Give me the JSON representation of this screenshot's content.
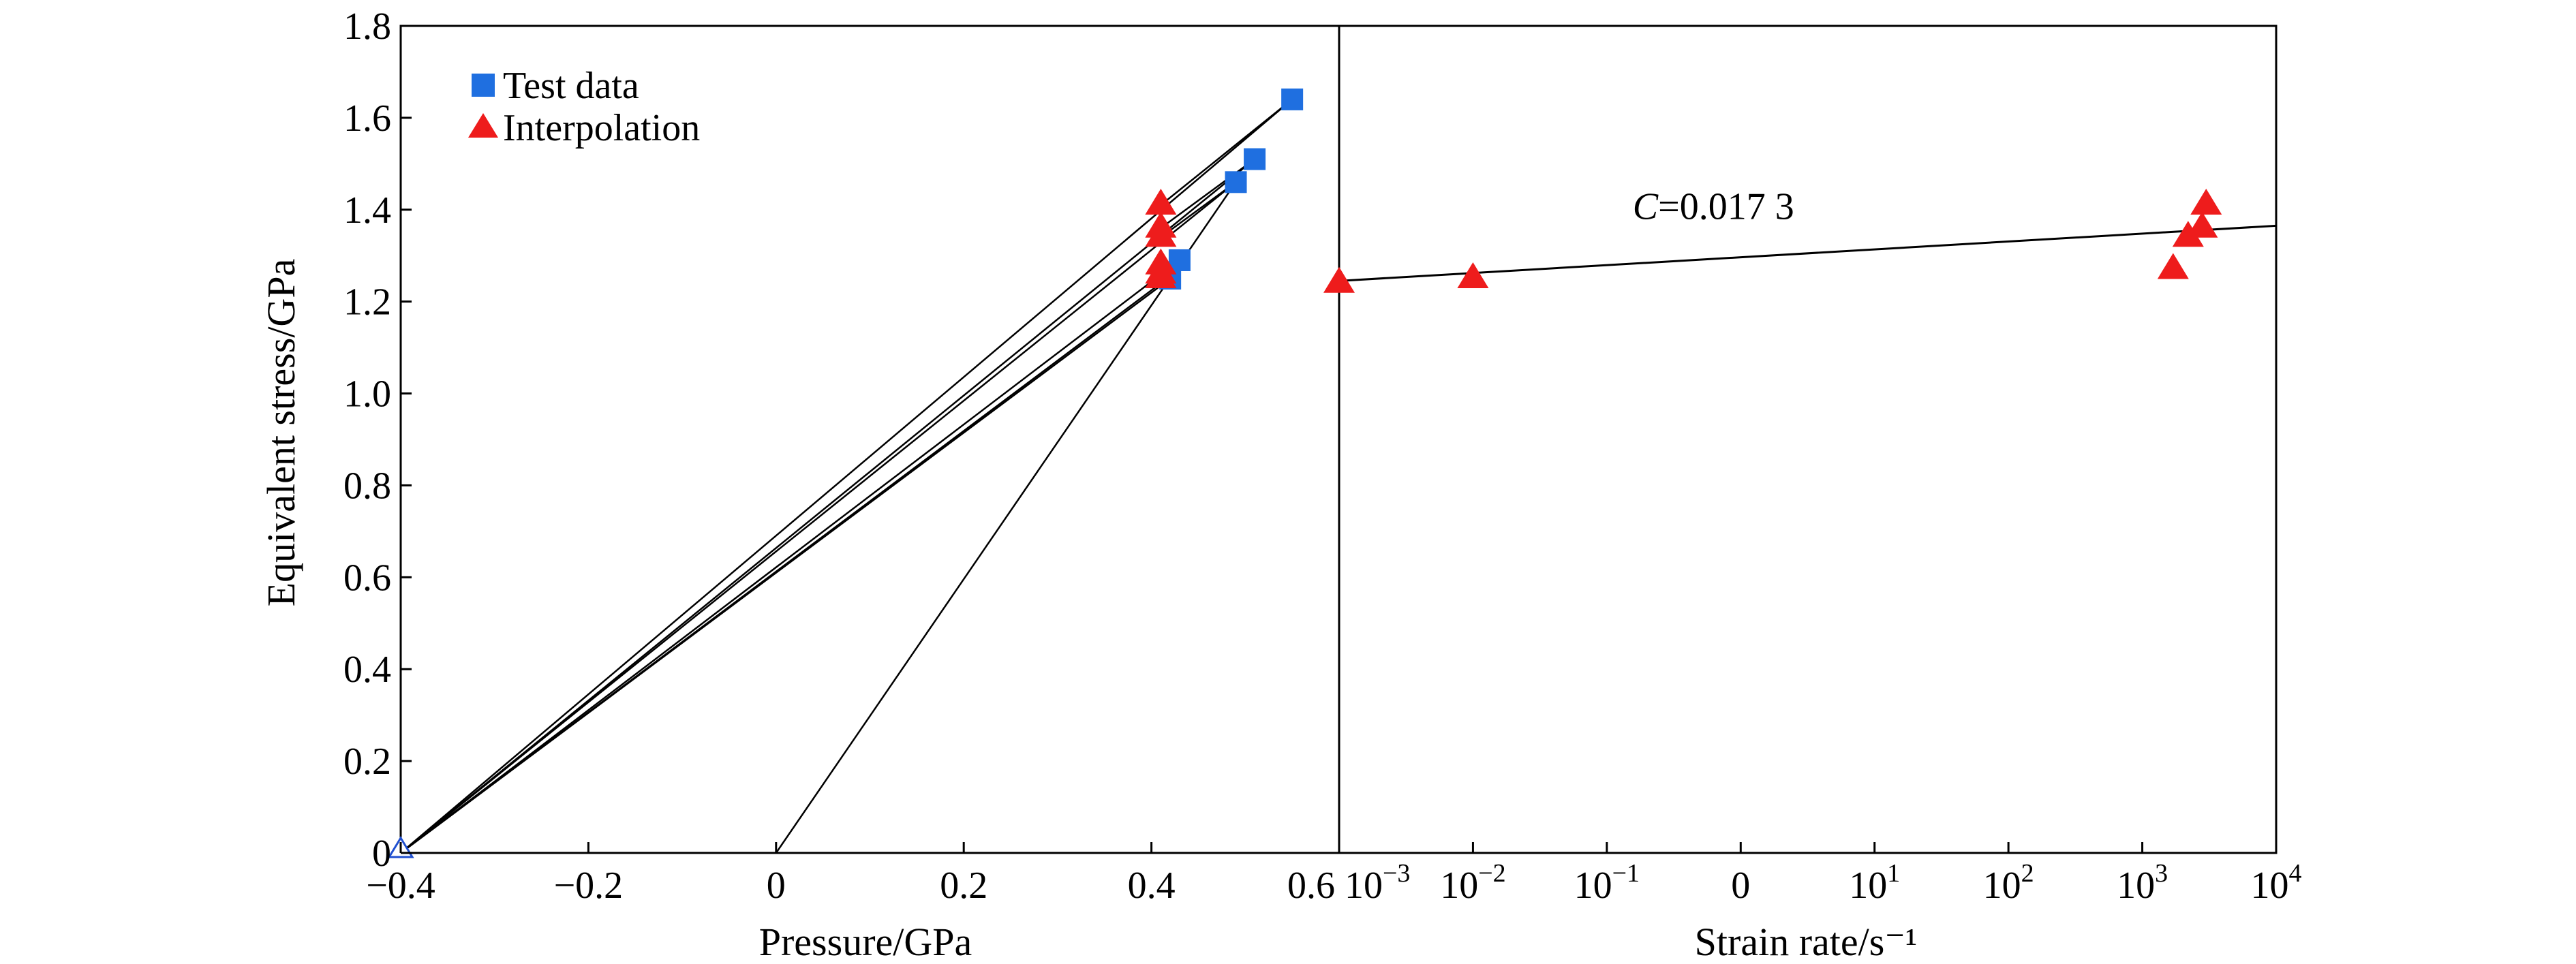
{
  "chart_data": {
    "type": "scatter",
    "ylabel": "Equivalent stress/GPa",
    "ylim": [
      0,
      1.8
    ],
    "yticks": [
      "0",
      "0.2",
      "0.4",
      "0.6",
      "0.8",
      "1.0",
      "1.2",
      "1.4",
      "1.6",
      "1.8"
    ],
    "legend": {
      "position": "top-left",
      "entries": [
        {
          "label": "Test data",
          "marker": "square",
          "color": "#1f6fe0"
        },
        {
          "label": "Interpolation",
          "marker": "triangle",
          "color": "#ee1c1c"
        }
      ]
    },
    "panels": [
      {
        "name": "pressure",
        "xlabel": "Pressure/GPa",
        "xlim": [
          -0.4,
          0.6
        ],
        "xticks": [
          "−0.4",
          "−0.2",
          "0",
          "0.2",
          "0.4",
          "0.6"
        ],
        "series": [
          {
            "name": "Test data",
            "marker": "square",
            "points": [
              [
                0.42,
                1.25
              ],
              [
                0.43,
                1.29
              ],
              [
                0.49,
                1.46
              ],
              [
                0.51,
                1.51
              ],
              [
                0.55,
                1.64
              ]
            ]
          },
          {
            "name": "Interpolation",
            "marker": "triangle",
            "points": [
              [
                0.41,
                1.41
              ],
              [
                0.41,
                1.36
              ],
              [
                0.41,
                1.34
              ],
              [
                0.41,
                1.28
              ],
              [
                0.41,
                1.26
              ],
              [
                0.41,
                1.25
              ]
            ]
          },
          {
            "name": "Origin",
            "marker": "open-triangle",
            "points": [
              [
                -0.4,
                0.0
              ]
            ]
          }
        ],
        "lines": [
          [
            [
              -0.4,
              0.0
            ],
            [
              0.55,
              1.64
            ]
          ],
          [
            [
              -0.4,
              0.0
            ],
            [
              0.51,
              1.51
            ]
          ],
          [
            [
              -0.4,
              0.0
            ],
            [
              0.49,
              1.46
            ]
          ],
          [
            [
              -0.4,
              0.0
            ],
            [
              0.43,
              1.29
            ]
          ],
          [
            [
              -0.4,
              0.0
            ],
            [
              0.42,
              1.25
            ]
          ],
          [
            [
              -0.4,
              0.0
            ],
            [
              0.41,
              1.24
            ]
          ],
          [
            [
              0.0,
              0.0
            ],
            [
              0.49,
              1.46
            ]
          ],
          [
            [
              0.41,
              1.41
            ],
            [
              0.55,
              1.64
            ]
          ],
          [
            [
              0.41,
              1.36
            ],
            [
              0.51,
              1.51
            ]
          ],
          [
            [
              0.41,
              1.34
            ],
            [
              0.49,
              1.46
            ]
          ]
        ]
      },
      {
        "name": "strain_rate",
        "xlabel": "Strain rate/s⁻¹",
        "xscale": "log",
        "xlim_exponent": [
          -3,
          4
        ],
        "xticks": [
          {
            "base": "10",
            "exp": "−3",
            "e": -3
          },
          {
            "base": "10",
            "exp": "−2",
            "e": -2
          },
          {
            "base": "10",
            "exp": "−1",
            "e": -1
          },
          {
            "base": "0",
            "exp": "",
            "e": 0
          },
          {
            "base": "10",
            "exp": "1",
            "e": 1
          },
          {
            "base": "10",
            "exp": "2",
            "e": 2
          },
          {
            "base": "10",
            "exp": "3",
            "e": 3
          },
          {
            "base": "10",
            "exp": "4",
            "e": 4
          }
        ],
        "series": [
          {
            "name": "Interpolation",
            "marker": "triangle",
            "points": [
              [
                0.001,
                1.24
              ],
              [
                0.01,
                1.25
              ],
              [
                1700,
                1.27
              ],
              [
                2200,
                1.34
              ],
              [
                2800,
                1.36
              ],
              [
                3000,
                1.41
              ]
            ]
          }
        ],
        "fit_line": {
          "from": [
            0.001,
            1.245
          ],
          "to": [
            10000,
            1.365
          ]
        },
        "annotation": {
          "italic": "C",
          "text": "=0.017 3",
          "x": 1,
          "y": 1.38
        }
      }
    ]
  }
}
